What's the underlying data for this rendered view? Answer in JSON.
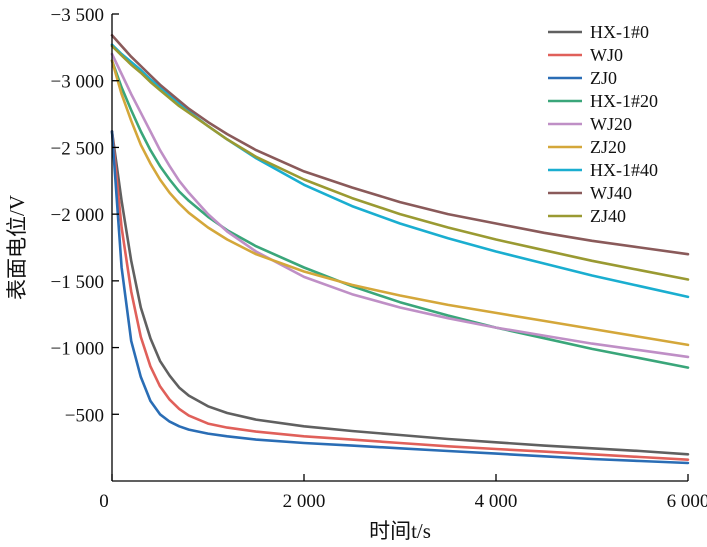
{
  "chart_data": {
    "type": "line",
    "title": "",
    "xlabel": "时间t/s",
    "ylabel": "表面电位/V",
    "xlim": [
      0,
      6000
    ],
    "ylim": [
      0,
      -3500
    ],
    "x_ticks": [
      {
        "value": 0,
        "label": "0"
      },
      {
        "value": 2000,
        "label": "2 000"
      },
      {
        "value": 4000,
        "label": "4 000"
      },
      {
        "value": 6000,
        "label": "6 000"
      }
    ],
    "y_ticks": [
      {
        "value": -500,
        "label": "−500"
      },
      {
        "value": -1000,
        "label": "−1 000"
      },
      {
        "value": -1500,
        "label": "−1 500"
      },
      {
        "value": -2000,
        "label": "−2 000"
      },
      {
        "value": -2500,
        "label": "−2 500"
      },
      {
        "value": -3000,
        "label": "−3 000"
      },
      {
        "value": -3500,
        "label": "−3 500"
      }
    ],
    "grid": false,
    "legend_position": "top-right",
    "x": [
      0,
      100,
      200,
      300,
      400,
      500,
      600,
      700,
      800,
      1000,
      1200,
      1500,
      2000,
      2500,
      3000,
      3500,
      4000,
      4500,
      5000,
      5500,
      6000
    ],
    "series": [
      {
        "name": "HX-1#0",
        "color": "#606060",
        "values": [
          -2620,
          -2100,
          -1650,
          -1300,
          -1070,
          -900,
          -790,
          -700,
          -640,
          -560,
          -510,
          -460,
          -410,
          -375,
          -345,
          -315,
          -290,
          -265,
          -245,
          -225,
          -200
        ]
      },
      {
        "name": "WJ0",
        "color": "#e0605a",
        "values": [
          -2620,
          -1900,
          -1420,
          -1080,
          -860,
          -710,
          -610,
          -540,
          -490,
          -430,
          -400,
          -370,
          -335,
          -310,
          -285,
          -260,
          -240,
          -220,
          -200,
          -180,
          -160
        ]
      },
      {
        "name": "ZJ0",
        "color": "#2a6db5",
        "values": [
          -2620,
          -1600,
          -1050,
          -780,
          -600,
          -500,
          -445,
          -410,
          -385,
          -355,
          -335,
          -310,
          -285,
          -265,
          -245,
          -225,
          -205,
          -185,
          -165,
          -150,
          -135
        ]
      },
      {
        "name": "HX-1#20",
        "color": "#3aa67a",
        "values": [
          -3150,
          -2950,
          -2780,
          -2620,
          -2480,
          -2360,
          -2260,
          -2170,
          -2100,
          -1980,
          -1880,
          -1760,
          -1600,
          -1460,
          -1340,
          -1240,
          -1150,
          -1070,
          -990,
          -920,
          -850
        ]
      },
      {
        "name": "WJ20",
        "color": "#bf8fc6",
        "values": [
          -3200,
          -3050,
          -2900,
          -2760,
          -2620,
          -2480,
          -2360,
          -2250,
          -2160,
          -2000,
          -1870,
          -1720,
          -1530,
          -1400,
          -1300,
          -1220,
          -1150,
          -1090,
          -1030,
          -980,
          -930
        ]
      },
      {
        "name": "ZJ20",
        "color": "#d4a73a",
        "values": [
          -3150,
          -2900,
          -2700,
          -2520,
          -2380,
          -2260,
          -2160,
          -2080,
          -2010,
          -1900,
          -1810,
          -1700,
          -1570,
          -1470,
          -1390,
          -1320,
          -1260,
          -1200,
          -1140,
          -1080,
          -1020
        ]
      },
      {
        "name": "HX-1#40",
        "color": "#1aaed0",
        "values": [
          -3270,
          -3200,
          -3140,
          -3080,
          -3010,
          -2950,
          -2890,
          -2830,
          -2770,
          -2660,
          -2560,
          -2420,
          -2220,
          -2060,
          -1930,
          -1820,
          -1720,
          -1630,
          -1540,
          -1460,
          -1380
        ]
      },
      {
        "name": "WJ40",
        "color": "#8a5a5a",
        "values": [
          -3340,
          -3260,
          -3180,
          -3110,
          -3040,
          -2970,
          -2910,
          -2850,
          -2790,
          -2690,
          -2600,
          -2480,
          -2320,
          -2200,
          -2090,
          -2000,
          -1930,
          -1860,
          -1800,
          -1750,
          -1700
        ]
      },
      {
        "name": "ZJ40",
        "color": "#9a9a32",
        "values": [
          -3260,
          -3190,
          -3120,
          -3060,
          -2990,
          -2930,
          -2870,
          -2810,
          -2760,
          -2660,
          -2560,
          -2430,
          -2260,
          -2120,
          -2000,
          -1900,
          -1810,
          -1730,
          -1650,
          -1580,
          -1510
        ]
      }
    ]
  }
}
